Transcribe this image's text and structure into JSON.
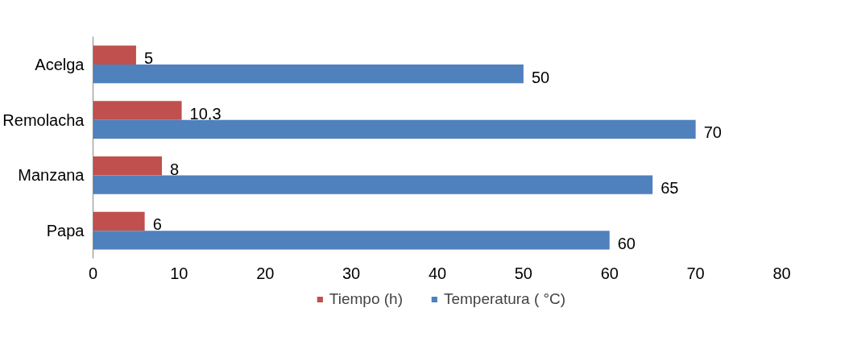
{
  "chart_data": {
    "type": "bar",
    "orientation": "horizontal",
    "categories": [
      "Acelga",
      "Remolacha",
      "Manzana",
      "Papa"
    ],
    "series": [
      {
        "name": "Tiempo (h)",
        "color": "#c0504d",
        "values": [
          5,
          10.3,
          8,
          6
        ],
        "value_labels": [
          "5",
          "10,3",
          "8",
          "6"
        ]
      },
      {
        "name": "Temperatura ( °C)",
        "color": "#4f81bd",
        "values": [
          50,
          70,
          65,
          60
        ],
        "value_labels": [
          "50",
          "70",
          "65",
          "60"
        ]
      }
    ],
    "xlim": [
      0,
      80
    ],
    "xticks": [
      0,
      10,
      20,
      30,
      40,
      50,
      60,
      70,
      80
    ],
    "grid": false,
    "legend": "bottom"
  }
}
